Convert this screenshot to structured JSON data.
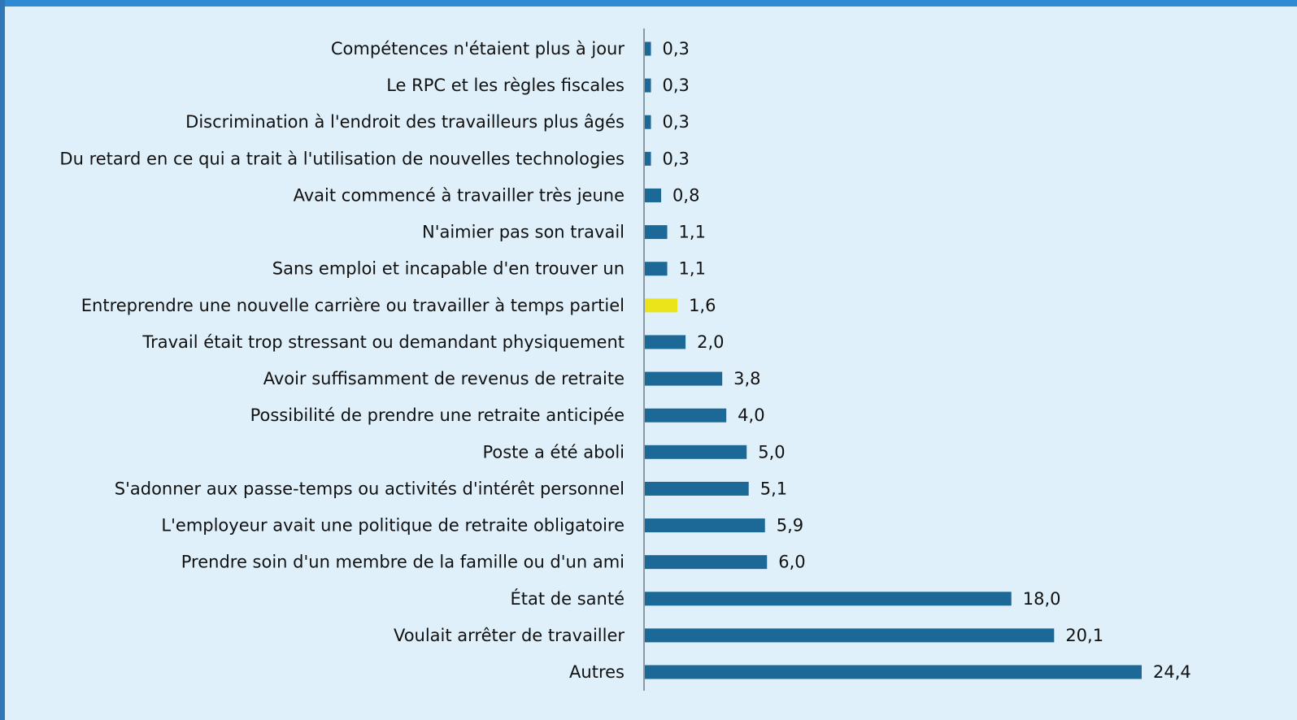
{
  "chart_data": {
    "type": "bar",
    "orientation": "horizontal",
    "categories": [
      "Compétences n'étaient plus à jour",
      "Le RPC et les règles fiscales",
      "Discrimination à l'endroit des travailleurs plus âgés",
      "Du retard en ce qui a trait à l'utilisation de nouvelles technologies",
      "Avait commencé à travailler très jeune",
      "N'aimier pas son travail",
      "Sans emploi et incapable d'en trouver un",
      "Entreprendre une nouvelle carrière ou travailler à temps partiel",
      "Travail était trop stressant ou demandant physiquement",
      "Avoir suffisamment de revenus de retraite",
      "Possibilité de prendre une retraite anticipée",
      "Poste a été aboli",
      "S'adonner aux passe-temps ou activités d'intérêt personnel",
      "L'employeur avait une politique de retraite obligatoire",
      "Prendre soin d'un membre de la famille ou d'un ami",
      "État de santé",
      "Voulait arrêter de travailler",
      "Autres"
    ],
    "values": [
      0.3,
      0.3,
      0.3,
      0.3,
      0.8,
      1.1,
      1.1,
      1.6,
      2.0,
      3.8,
      4.0,
      5.0,
      5.1,
      5.9,
      6.0,
      18.0,
      20.1,
      24.4
    ],
    "value_labels": [
      "0,3",
      "0,3",
      "0,3",
      "0,3",
      "0,8",
      "1,1",
      "1,1",
      "1,6",
      "2,0",
      "3,8",
      "4,0",
      "5,0",
      "5,1",
      "5,9",
      "6,0",
      "18,0",
      "20,1",
      "24,4"
    ],
    "colors": [
      "#1c6897",
      "#1c6897",
      "#1c6897",
      "#1c6897",
      "#1c6897",
      "#1c6897",
      "#1c6897",
      "#ece41a",
      "#1c6897",
      "#1c6897",
      "#1c6897",
      "#1c6897",
      "#1c6897",
      "#1c6897",
      "#1c6897",
      "#1c6897",
      "#1c6897",
      "#1c6897"
    ]
  }
}
